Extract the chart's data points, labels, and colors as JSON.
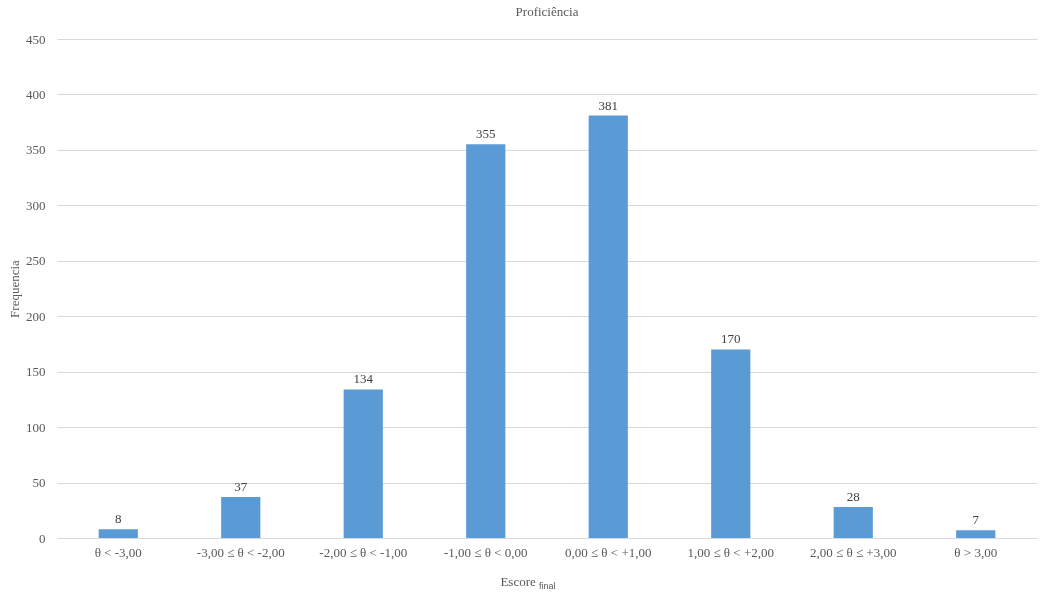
{
  "chart_data": {
    "type": "bar",
    "title": "Proficiência",
    "xlabel": "Escore $_{final}$",
    "ylabel": "Frequencia",
    "categories": [
      "θ < -3,00",
      "-3,00 ≤ θ < -2,00",
      "-2,00 ≤ θ < -1,00",
      "-1,00 ≤ θ < 0,00",
      "0,00 ≤ θ < +1,00",
      "1,00 ≤ θ < +2,00",
      "2,00 ≤ θ ≤ +3,00",
      "θ > 3,00"
    ],
    "values": [
      8,
      37,
      134,
      355,
      381,
      170,
      28,
      7
    ],
    "color": "#5b9bd5",
    "ylim": [
      0,
      450
    ],
    "yticks": [
      0,
      50,
      100,
      150,
      200,
      250,
      300,
      350,
      400,
      450
    ],
    "grid": "y",
    "data_labels": true
  }
}
